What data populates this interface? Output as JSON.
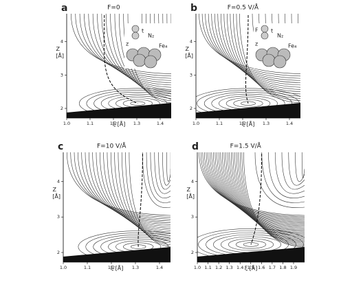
{
  "panels": [
    {
      "label": "a",
      "title": "F=0",
      "y_label": "Z",
      "y_unit": "[Å]",
      "x_label": "ξ [Å]",
      "xticks": [
        "1.0",
        "1.1",
        "1.2",
        "1.3",
        "1.4"
      ],
      "yticks": [
        "2",
        "3",
        "4"
      ],
      "inset": {
        "molecule": "N₂",
        "surface": "Fe₄",
        "z": "z",
        "t": "t"
      }
    },
    {
      "label": "b",
      "title": "F=0.5 V/Å",
      "y_label": "Z",
      "y_unit": "[Å]",
      "x_label": "ξ [Å]",
      "xticks": [
        "1.0",
        "1.1",
        "1.2",
        "1.3",
        "1.4"
      ],
      "yticks": [
        "2",
        "3",
        "4"
      ],
      "inset": {
        "molecule": "N₂",
        "surface": "Fe₄",
        "z": "z",
        "t": "t",
        "field": "F"
      }
    },
    {
      "label": "c",
      "title": "F=10 V/Å",
      "y_label": "Z",
      "y_unit": "[Å]",
      "x_label": "ξ [Å]",
      "xticks": [
        "1.0",
        "1.1",
        "1.2",
        "1.3",
        "1.4"
      ],
      "yticks": [
        "2",
        "3",
        "4"
      ]
    },
    {
      "label": "d",
      "title": "F=1.5 V/Å",
      "y_label": "Z",
      "y_unit": "[Å]",
      "x_label": "ξ [Å]",
      "xticks": [
        "1.0",
        "1.1",
        "1.2",
        "1.3",
        "1.4",
        "1.5",
        "1.6",
        "1.7",
        "1.8",
        "1.9"
      ],
      "yticks": [
        "2",
        "3",
        "4"
      ]
    }
  ]
}
